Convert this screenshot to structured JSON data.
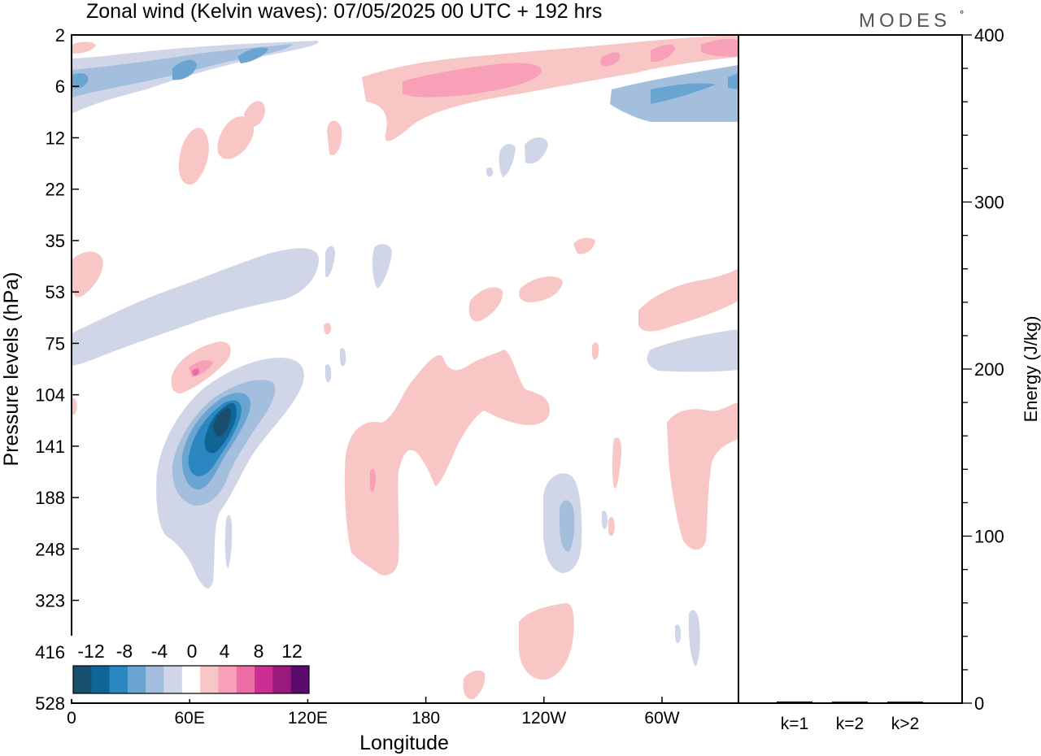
{
  "chart_data": {
    "type": "heatmap",
    "title": "Zonal wind (Kelvin waves):  07/05/2025  00 UTC  + 192 hrs",
    "brand": "MODES",
    "brand_mark": "°",
    "xlabel": "Longitude",
    "ylabel": "Pressure levels (hPa)",
    "y2label": "Energy (J/kg)",
    "x_ticks": [
      "0",
      "60E",
      "120E",
      "180",
      "120W",
      "60W"
    ],
    "y_ticks": [
      "2",
      "6",
      "12",
      "22",
      "35",
      "53",
      "75",
      "104",
      "141",
      "188",
      "248",
      "323",
      "416",
      "528"
    ],
    "energy_ticks": [
      "0",
      "100",
      "200",
      "300",
      "400"
    ],
    "energy_ylim": [
      0,
      400
    ],
    "energy_bars": {
      "categories": [
        "k=1",
        "k=2",
        "k>2"
      ],
      "values": [
        0.5,
        0.4,
        0.4
      ]
    },
    "colorbar": {
      "labels": [
        "-12",
        "-8",
        "-4",
        "0",
        "4",
        "8",
        "12"
      ],
      "colors": [
        "#1a4e6e",
        "#0f6596",
        "#2b87c0",
        "#6aa5d1",
        "#a3bfdd",
        "#d0d5e8",
        "#ffffff",
        "#f9c6c6",
        "#f7a0b8",
        "#ec6da6",
        "#cd2e93",
        "#981a7c",
        "#5c0a6b"
      ]
    },
    "grid": false
  }
}
